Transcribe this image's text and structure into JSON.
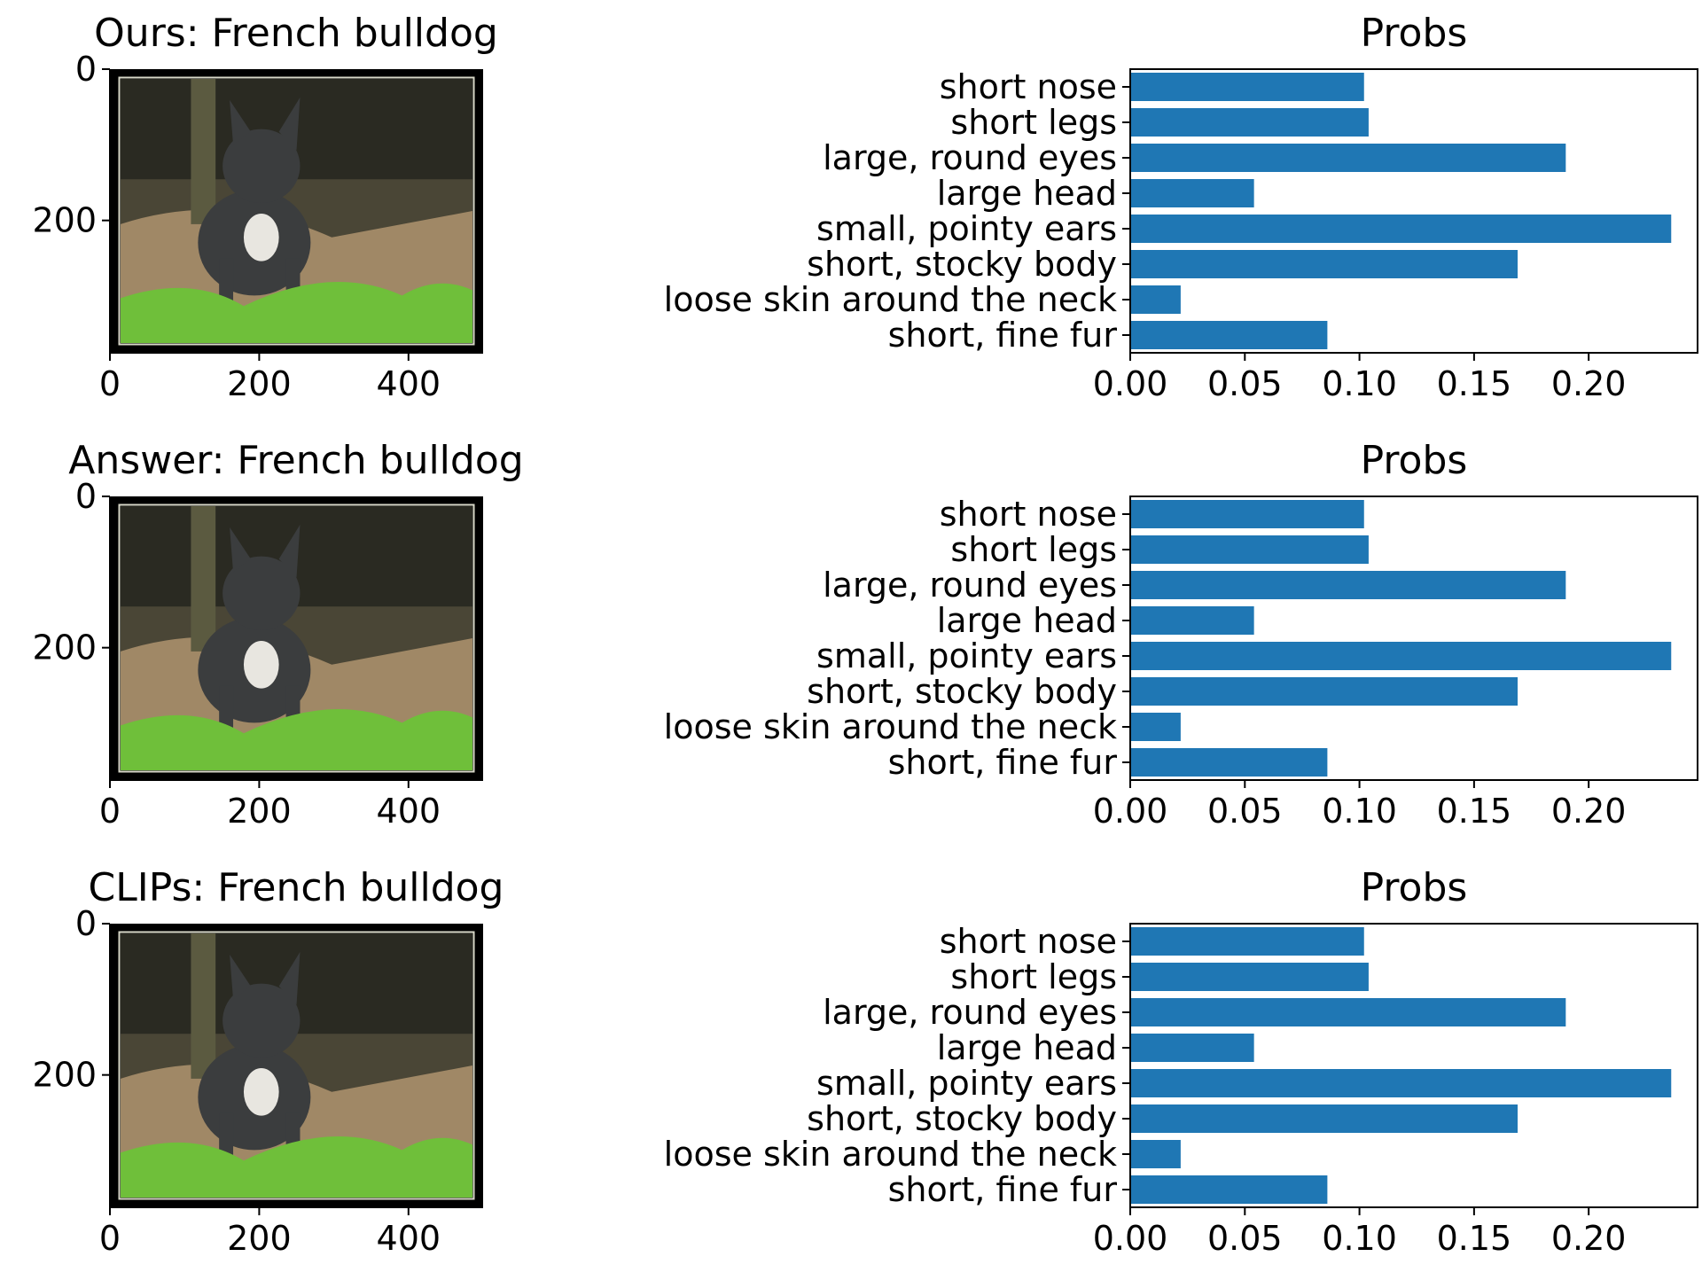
{
  "colors": {
    "bar": "#1f77b4",
    "axis": "#000000",
    "image_frame": "#000000",
    "image_background": "#4a4636",
    "grass": "#6fbf3a",
    "dog": "#3b3d3e"
  },
  "panels": [
    {
      "image_title": "Ours: French bulldog",
      "image_axes": {
        "y_ticks": [
          "0",
          "200"
        ],
        "x_ticks": [
          "0",
          "200",
          "400"
        ]
      },
      "image_content": "photo-french-bulldog",
      "bar_title": "Probs"
    },
    {
      "image_title": "Answer: French bulldog",
      "image_axes": {
        "y_ticks": [
          "0",
          "200"
        ],
        "x_ticks": [
          "0",
          "200",
          "400"
        ]
      },
      "image_content": "photo-french-bulldog",
      "bar_title": "Probs"
    },
    {
      "image_title": "CLIPs: French bulldog",
      "image_axes": {
        "y_ticks": [
          "0",
          "200"
        ],
        "x_ticks": [
          "0",
          "200",
          "400"
        ]
      },
      "image_content": "photo-french-bulldog",
      "bar_title": "Probs"
    }
  ],
  "chart_data": [
    {
      "type": "bar",
      "orientation": "horizontal",
      "title": "Probs",
      "categories": [
        "short nose",
        "short legs",
        "large, round eyes",
        "large head",
        "small, pointy ears",
        "short, stocky body",
        "loose skin around the neck",
        "short, fine fur"
      ],
      "values": [
        0.102,
        0.104,
        0.19,
        0.054,
        0.236,
        0.169,
        0.022,
        0.086
      ],
      "xlim": [
        0,
        0.2475
      ],
      "xticks": [
        "0.00",
        "0.05",
        "0.10",
        "0.15",
        "0.20"
      ],
      "grid": false
    },
    {
      "type": "bar",
      "orientation": "horizontal",
      "title": "Probs",
      "categories": [
        "short nose",
        "short legs",
        "large, round eyes",
        "large head",
        "small, pointy ears",
        "short, stocky body",
        "loose skin around the neck",
        "short, fine fur"
      ],
      "values": [
        0.102,
        0.104,
        0.19,
        0.054,
        0.236,
        0.169,
        0.022,
        0.086
      ],
      "xlim": [
        0,
        0.2475
      ],
      "xticks": [
        "0.00",
        "0.05",
        "0.10",
        "0.15",
        "0.20"
      ],
      "grid": false
    },
    {
      "type": "bar",
      "orientation": "horizontal",
      "title": "Probs",
      "categories": [
        "short nose",
        "short legs",
        "large, round eyes",
        "large head",
        "small, pointy ears",
        "short, stocky body",
        "loose skin around the neck",
        "short, fine fur"
      ],
      "values": [
        0.102,
        0.104,
        0.19,
        0.054,
        0.236,
        0.169,
        0.022,
        0.086
      ],
      "xlim": [
        0,
        0.2475
      ],
      "xticks": [
        "0.00",
        "0.05",
        "0.10",
        "0.15",
        "0.20"
      ],
      "grid": false
    }
  ]
}
